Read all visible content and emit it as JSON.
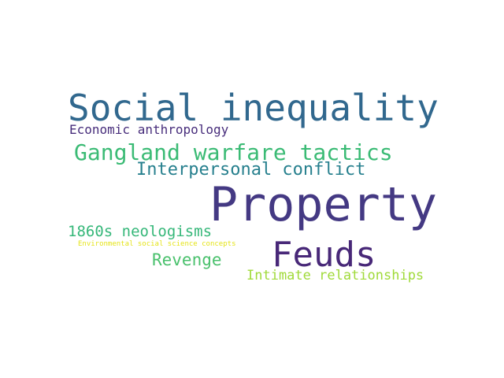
{
  "words": [
    {
      "id": "w-property",
      "text": "Property",
      "color": "#443983"
    },
    {
      "id": "w-social",
      "text": "Social inequality",
      "color": "#31688e"
    },
    {
      "id": "w-feuds",
      "text": "Feuds",
      "color": "#482878"
    },
    {
      "id": "w-gangland",
      "text": "Gangland warfare tactics",
      "color": "#3bbb75"
    },
    {
      "id": "w-interp",
      "text": "Interpersonal conflict",
      "color": "#27808e"
    },
    {
      "id": "w-econ",
      "text": "Economic anthropology",
      "color": "#472d7b"
    },
    {
      "id": "w-1860",
      "text": "1860s neologisms",
      "color": "#35b779"
    },
    {
      "id": "w-env",
      "text": "Environmental social science concepts",
      "color": "#e5e419"
    },
    {
      "id": "w-revenge",
      "text": "Revenge",
      "color": "#4ac16d"
    },
    {
      "id": "w-intimate",
      "text": "Intimate relationships",
      "color": "#a0da39"
    }
  ]
}
